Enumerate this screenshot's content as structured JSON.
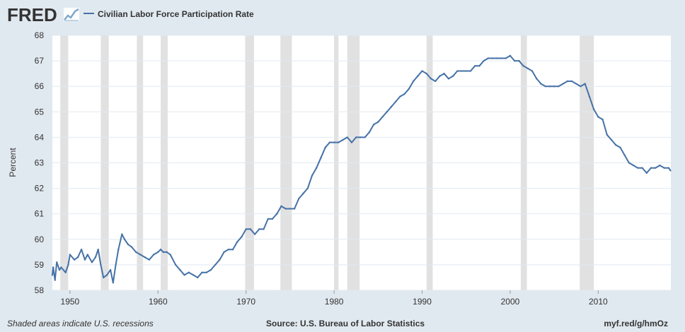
{
  "header": {
    "logo_text": "FRED",
    "legend_label": "Civilian Labor Force Participation Rate"
  },
  "footer": {
    "note": "Shaded areas indicate U.S. recessions",
    "source": "Source: U.S. Bureau of Labor Statistics",
    "short_url": "myf.red/g/hmOz"
  },
  "colors": {
    "background": "#e1e9f0",
    "plot_background": "#ffffff",
    "series_line": "#4572a7",
    "recession_band": "#e1e1e1",
    "gridline": "#e1e9f0",
    "text": "#333333"
  },
  "chart_data": {
    "type": "line",
    "title": "",
    "xlabel": "",
    "ylabel": "Percent",
    "ylim": [
      58,
      68
    ],
    "xlim": [
      1948.0,
      2018.25
    ],
    "y_ticks": [
      58,
      59,
      60,
      61,
      62,
      63,
      64,
      65,
      66,
      67,
      68
    ],
    "x_ticks": [
      1950,
      1960,
      1970,
      1980,
      1990,
      2000,
      2010
    ],
    "grid": true,
    "legend_position": "top-left",
    "recessions": [
      [
        1948.9,
        1949.8
      ],
      [
        1953.5,
        1954.4
      ],
      [
        1957.6,
        1958.3
      ],
      [
        1960.3,
        1961.1
      ],
      [
        1969.9,
        1970.9
      ],
      [
        1973.9,
        1975.2
      ],
      [
        1980.0,
        1980.5
      ],
      [
        1981.5,
        1982.9
      ],
      [
        1990.5,
        1991.2
      ],
      [
        2001.2,
        2001.9
      ],
      [
        2007.9,
        2009.5
      ]
    ],
    "series": [
      {
        "name": "Civilian Labor Force Participation Rate",
        "x": [
          1948.0,
          1948.1,
          1948.3,
          1948.5,
          1948.8,
          1949.0,
          1949.5,
          1949.8,
          1950.0,
          1950.5,
          1950.9,
          1951.3,
          1951.7,
          1952.0,
          1952.5,
          1952.9,
          1953.2,
          1953.5,
          1953.8,
          1954.2,
          1954.6,
          1954.9,
          1955.2,
          1955.5,
          1955.9,
          1956.2,
          1956.6,
          1957.0,
          1957.5,
          1958.0,
          1958.5,
          1959.0,
          1959.5,
          1960.0,
          1960.3,
          1960.6,
          1961.0,
          1961.4,
          1962.0,
          1962.5,
          1963.0,
          1963.5,
          1964.0,
          1964.5,
          1965.0,
          1965.5,
          1966.0,
          1966.5,
          1967.0,
          1967.5,
          1968.0,
          1968.5,
          1969.0,
          1969.5,
          1970.0,
          1970.5,
          1971.0,
          1971.5,
          1972.0,
          1972.5,
          1973.0,
          1973.5,
          1974.0,
          1974.5,
          1975.0,
          1975.5,
          1976.0,
          1976.5,
          1977.0,
          1977.5,
          1978.0,
          1978.5,
          1979.0,
          1979.5,
          1980.0,
          1980.5,
          1981.0,
          1981.5,
          1982.0,
          1982.5,
          1983.0,
          1983.5,
          1984.0,
          1984.5,
          1985.0,
          1985.5,
          1986.0,
          1986.5,
          1987.0,
          1987.5,
          1988.0,
          1988.5,
          1989.0,
          1989.5,
          1990.0,
          1990.5,
          1991.0,
          1991.5,
          1992.0,
          1992.5,
          1993.0,
          1993.5,
          1994.0,
          1994.5,
          1995.0,
          1995.5,
          1996.0,
          1996.5,
          1997.0,
          1997.5,
          1998.0,
          1998.5,
          1999.0,
          1999.5,
          2000.0,
          2000.5,
          2001.0,
          2001.5,
          2002.0,
          2002.5,
          2003.0,
          2003.5,
          2004.0,
          2004.5,
          2005.0,
          2005.5,
          2006.0,
          2006.5,
          2007.0,
          2007.5,
          2008.0,
          2008.5,
          2009.0,
          2009.5,
          2010.0,
          2010.5,
          2011.0,
          2011.5,
          2012.0,
          2012.5,
          2013.0,
          2013.5,
          2014.0,
          2014.5,
          2015.0,
          2015.5,
          2016.0,
          2016.5,
          2017.0,
          2017.5,
          2018.0,
          2018.2
        ],
        "values": [
          58.6,
          58.9,
          58.4,
          59.1,
          58.8,
          58.9,
          58.7,
          59.0,
          59.4,
          59.2,
          59.3,
          59.6,
          59.2,
          59.4,
          59.1,
          59.3,
          59.6,
          59.0,
          58.5,
          58.6,
          58.8,
          58.3,
          59.0,
          59.6,
          60.2,
          60.0,
          59.8,
          59.7,
          59.5,
          59.4,
          59.3,
          59.2,
          59.4,
          59.5,
          59.6,
          59.5,
          59.5,
          59.4,
          59.0,
          58.8,
          58.6,
          58.7,
          58.6,
          58.5,
          58.7,
          58.7,
          58.8,
          59.0,
          59.2,
          59.5,
          59.6,
          59.6,
          59.9,
          60.1,
          60.4,
          60.4,
          60.2,
          60.4,
          60.4,
          60.8,
          60.8,
          61.0,
          61.3,
          61.2,
          61.2,
          61.2,
          61.6,
          61.8,
          62.0,
          62.5,
          62.8,
          63.2,
          63.6,
          63.8,
          63.8,
          63.8,
          63.9,
          64.0,
          63.8,
          64.0,
          64.0,
          64.0,
          64.2,
          64.5,
          64.6,
          64.8,
          65.0,
          65.2,
          65.4,
          65.6,
          65.7,
          65.9,
          66.2,
          66.4,
          66.6,
          66.5,
          66.3,
          66.2,
          66.4,
          66.5,
          66.3,
          66.4,
          66.6,
          66.6,
          66.6,
          66.6,
          66.8,
          66.8,
          67.0,
          67.1,
          67.1,
          67.1,
          67.1,
          67.1,
          67.2,
          67.0,
          67.0,
          66.8,
          66.7,
          66.6,
          66.3,
          66.1,
          66.0,
          66.0,
          66.0,
          66.0,
          66.1,
          66.2,
          66.2,
          66.1,
          66.0,
          66.1,
          65.6,
          65.1,
          64.8,
          64.7,
          64.1,
          63.9,
          63.7,
          63.6,
          63.3,
          63.0,
          62.9,
          62.8,
          62.8,
          62.6,
          62.8,
          62.8,
          62.9,
          62.8,
          62.8,
          62.7
        ]
      }
    ]
  }
}
